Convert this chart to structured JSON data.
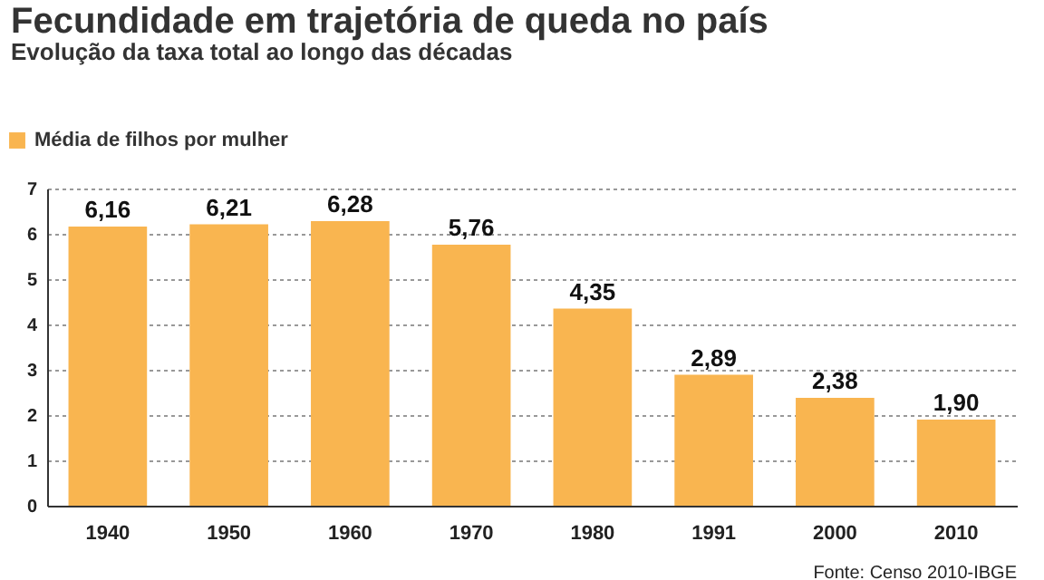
{
  "chart_data": {
    "type": "bar",
    "title": "Fecundidade em trajetória de queda no país",
    "subtitle": "Evolução da taxa total ao longo das décadas",
    "categories": [
      "1940",
      "1950",
      "1960",
      "1970",
      "1980",
      "1991",
      "2000",
      "2010"
    ],
    "series": [
      {
        "name": "Média de filhos por mulher",
        "color": "#f9b550",
        "values": [
          6.16,
          6.21,
          6.28,
          5.76,
          4.35,
          2.89,
          2.38,
          1.9
        ],
        "value_labels": [
          "6,16",
          "6,21",
          "6,28",
          "5,76",
          "4,35",
          "2,89",
          "2,38",
          "1,90"
        ]
      }
    ],
    "ylim": [
      0,
      7
    ],
    "yticks": [
      0,
      1,
      2,
      3,
      4,
      5,
      6,
      7
    ],
    "grid": "y",
    "legend": "top left",
    "annotations": [
      "Fonte: Censo 2010-IBGE"
    ]
  }
}
